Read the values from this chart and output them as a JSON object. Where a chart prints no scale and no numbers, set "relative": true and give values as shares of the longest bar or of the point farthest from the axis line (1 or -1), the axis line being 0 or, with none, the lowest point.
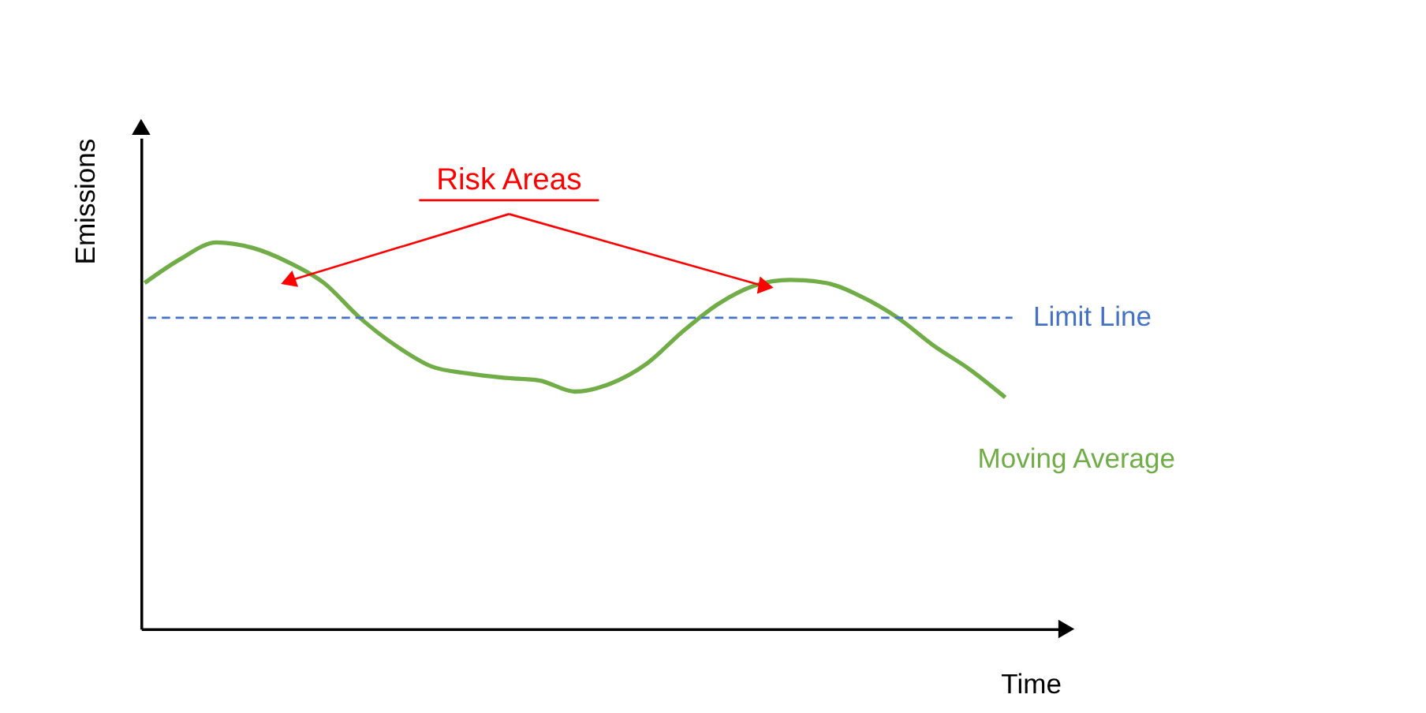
{
  "chart_data": {
    "type": "line",
    "relative": true,
    "xlabel": "Time",
    "ylabel": "Emissions",
    "categories": [
      null,
      null,
      null,
      null,
      null,
      null,
      null,
      null,
      null,
      null,
      null,
      null,
      null,
      null,
      null,
      null,
      null,
      null,
      null,
      null,
      null,
      null,
      null,
      null,
      null
    ],
    "series": [
      {
        "name": "Moving Average",
        "color": "#70ad47",
        "values": [
          0.895,
          0.957,
          1.0,
          0.986,
          0.949,
          0.895,
          0.805,
          0.733,
          0.679,
          0.661,
          0.65,
          0.643,
          0.614,
          0.635,
          0.686,
          0.769,
          0.841,
          0.888,
          0.903,
          0.895,
          0.859,
          0.805,
          0.733,
          0.672,
          0.599
        ]
      }
    ],
    "ref_lines": [
      {
        "axis": "y",
        "value": 0.805,
        "label": "Limit Line",
        "color": "#4472c4",
        "line_style": "dashed"
      }
    ],
    "annotations": [
      "Risk Areas"
    ],
    "legend": false,
    "grid": false,
    "marker": "none",
    "line_style": "solid"
  }
}
